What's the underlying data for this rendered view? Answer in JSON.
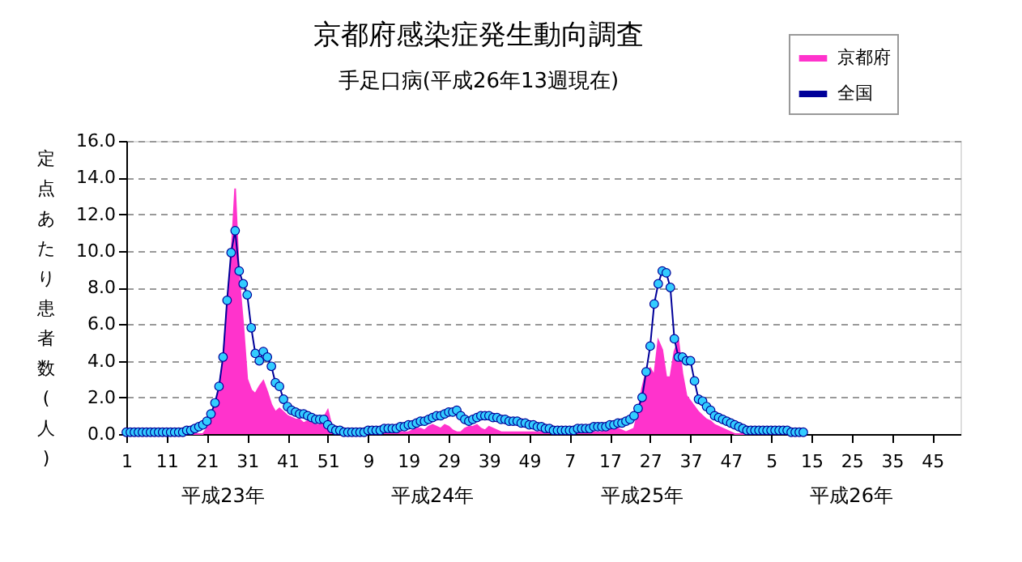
{
  "chart_data": {
    "type": "line",
    "title": "京都府感染症発生動向調査",
    "subtitle": "手足口病(平成26年13週現在)",
    "ylabel": "定点あたり患者数(人)",
    "categories": [
      "1",
      null,
      null,
      null,
      null,
      null,
      null,
      null,
      null,
      null,
      "11",
      null,
      null,
      null,
      null,
      null,
      null,
      null,
      null,
      null,
      "21",
      null,
      null,
      null,
      null,
      null,
      null,
      null,
      null,
      null,
      "31",
      null,
      null,
      null,
      null,
      null,
      null,
      null,
      null,
      null,
      "41",
      null,
      null,
      null,
      null,
      null,
      null,
      null,
      null,
      null,
      "51",
      null,
      null,
      null,
      null,
      null,
      null,
      null,
      null,
      null,
      "9",
      null,
      null,
      null,
      null,
      null,
      null,
      null,
      null,
      null,
      "19",
      null,
      null,
      null,
      null,
      null,
      null,
      null,
      null,
      null,
      "29",
      null,
      null,
      null,
      null,
      null,
      null,
      null,
      null,
      null,
      "39",
      null,
      null,
      null,
      null,
      null,
      null,
      null,
      null,
      null,
      "49",
      null,
      null,
      null,
      null,
      null,
      null,
      null,
      null,
      null,
      "7",
      null,
      null,
      null,
      null,
      null,
      null,
      null,
      null,
      null,
      "17",
      null,
      null,
      null,
      null,
      null,
      null,
      null,
      null,
      null,
      "27",
      null,
      null,
      null,
      null,
      null,
      null,
      null,
      null,
      null,
      "37",
      null,
      null,
      null,
      null,
      null,
      null,
      null,
      null,
      null,
      "47",
      null,
      null,
      null,
      null,
      null,
      null,
      null,
      null,
      null,
      "5",
      null,
      null,
      null,
      null,
      null,
      null,
      null,
      null,
      null,
      "15",
      null,
      null,
      null,
      null,
      null,
      null,
      null,
      null,
      null,
      "25",
      null,
      null,
      null,
      null,
      null,
      null,
      null,
      null,
      null,
      "35",
      null,
      null,
      null,
      null,
      null,
      null,
      null,
      null,
      null,
      "45",
      null,
      null,
      null,
      null,
      null,
      null,
      null
    ],
    "series": [
      {
        "name": "京都府",
        "type": "area",
        "color": "#ff33cc",
        "values": [
          0.0,
          0.0,
          0.0,
          0.0,
          0.0,
          0.0,
          0.0,
          0.0,
          0.0,
          0.0,
          0.0,
          0.0,
          0.0,
          0.0,
          0.0,
          0.0,
          0.0,
          0.0,
          0.0,
          0.0,
          0.3,
          0.8,
          1.5,
          2.5,
          4.0,
          7.0,
          9.5,
          13.4,
          8.5,
          6.0,
          3.0,
          2.4,
          2.2,
          2.6,
          2.9,
          2.3,
          1.6,
          1.2,
          1.4,
          1.2,
          1.0,
          0.9,
          0.8,
          0.8,
          0.6,
          0.7,
          0.6,
          0.5,
          0.5,
          0.9,
          1.3,
          0.4,
          0.1,
          0.1,
          0.1,
          0.1,
          0.1,
          0.1,
          0.1,
          0.1,
          0.1,
          0.1,
          0.1,
          0.1,
          0.1,
          0.1,
          0.1,
          0.1,
          0.1,
          0.1,
          0.1,
          0.2,
          0.3,
          0.3,
          0.2,
          0.4,
          0.5,
          0.4,
          0.3,
          0.5,
          0.4,
          0.2,
          0.1,
          0.1,
          0.3,
          0.4,
          0.4,
          0.5,
          0.3,
          0.2,
          0.4,
          0.3,
          0.2,
          0.1,
          0.1,
          0.1,
          0.1,
          0.1,
          0.1,
          0.1,
          0.1,
          0.1,
          0.1,
          0.1,
          0.1,
          0.1,
          0.1,
          0.1,
          0.1,
          0.1,
          0.1,
          0.1,
          0.1,
          0.1,
          0.1,
          0.1,
          0.1,
          0.1,
          0.1,
          0.2,
          0.3,
          0.4,
          0.3,
          0.2,
          0.1,
          0.2,
          0.3,
          1.2,
          2.5,
          3.4,
          3.6,
          3.2,
          5.1,
          4.6,
          3.1,
          3.1,
          4.5,
          5.1,
          3.3,
          2.1,
          1.8,
          1.5,
          1.2,
          1.0,
          0.8,
          0.7,
          0.5,
          0.4,
          0.3,
          0.2,
          0.1,
          0.0,
          0.0,
          0.0,
          0.0,
          0.0,
          0.0,
          0.0,
          0.0,
          0.0,
          0.0,
          0.0,
          0.0,
          0.0,
          0.0,
          0.0,
          0.0,
          0.0,
          0.0,
          null,
          null,
          null,
          null,
          null,
          null,
          null,
          null,
          null,
          null,
          null,
          null,
          null,
          null,
          null,
          null,
          null,
          null,
          null,
          null,
          null,
          null,
          null,
          null,
          null,
          null,
          null,
          null,
          null,
          null,
          null,
          null,
          null,
          null,
          null,
          null,
          null,
          null,
          null
        ]
      },
      {
        "name": "全国",
        "color": "#000099",
        "marker": "circle",
        "values": [
          0.1,
          0.1,
          0.1,
          0.1,
          0.1,
          0.1,
          0.1,
          0.1,
          0.1,
          0.1,
          0.1,
          0.1,
          0.1,
          0.1,
          0.1,
          0.2,
          0.2,
          0.3,
          0.4,
          0.5,
          0.7,
          1.1,
          1.7,
          2.6,
          4.2,
          7.3,
          9.9,
          11.1,
          8.9,
          8.2,
          7.6,
          5.8,
          4.4,
          4.0,
          4.5,
          4.2,
          3.7,
          2.8,
          2.6,
          1.9,
          1.5,
          1.3,
          1.2,
          1.1,
          1.1,
          1.0,
          0.9,
          0.8,
          0.8,
          0.8,
          0.5,
          0.3,
          0.2,
          0.2,
          0.1,
          0.1,
          0.1,
          0.1,
          0.1,
          0.1,
          0.2,
          0.2,
          0.2,
          0.2,
          0.3,
          0.3,
          0.3,
          0.3,
          0.4,
          0.4,
          0.5,
          0.5,
          0.6,
          0.7,
          0.7,
          0.8,
          0.9,
          1.0,
          1.0,
          1.1,
          1.2,
          1.2,
          1.3,
          1.0,
          0.8,
          0.7,
          0.8,
          0.9,
          1.0,
          1.0,
          1.0,
          0.9,
          0.9,
          0.8,
          0.8,
          0.7,
          0.7,
          0.7,
          0.6,
          0.6,
          0.5,
          0.5,
          0.4,
          0.4,
          0.3,
          0.3,
          0.2,
          0.2,
          0.2,
          0.2,
          0.2,
          0.2,
          0.3,
          0.3,
          0.3,
          0.3,
          0.4,
          0.4,
          0.4,
          0.4,
          0.5,
          0.5,
          0.6,
          0.6,
          0.7,
          0.8,
          1.0,
          1.4,
          2.0,
          3.4,
          4.8,
          7.1,
          8.2,
          8.9,
          8.8,
          8.0,
          5.2,
          4.2,
          4.2,
          4.0,
          4.0,
          2.9,
          1.9,
          1.8,
          1.5,
          1.3,
          1.0,
          0.9,
          0.8,
          0.7,
          0.6,
          0.5,
          0.4,
          0.3,
          0.2,
          0.2,
          0.2,
          0.2,
          0.2,
          0.2,
          0.2,
          0.2,
          0.2,
          0.2,
          0.2,
          0.1,
          0.1,
          0.1,
          0.1,
          null,
          null,
          null,
          null,
          null,
          null,
          null,
          null,
          null,
          null,
          null,
          null,
          null,
          null,
          null,
          null,
          null,
          null,
          null,
          null,
          null,
          null,
          null,
          null,
          null,
          null,
          null,
          null,
          null,
          null,
          null,
          null,
          null,
          null,
          null,
          null,
          null,
          null,
          null
        ]
      }
    ],
    "ylim": [
      0,
      16
    ],
    "yticks": [
      {
        "value": 0,
        "label": "0.0"
      },
      {
        "value": 2,
        "label": "2.0"
      },
      {
        "value": 4,
        "label": "4.0"
      },
      {
        "value": 6,
        "label": "6.0"
      },
      {
        "value": 8,
        "label": "8.0"
      },
      {
        "value": 10,
        "label": "10.0"
      },
      {
        "value": 12,
        "label": "12.0"
      },
      {
        "value": 14,
        "label": "14.0"
      },
      {
        "value": 16,
        "label": "16.0"
      }
    ],
    "grid": "y",
    "legend": "top right",
    "annotations": [
      "平成23年",
      "平成24年",
      "平成25年",
      "平成26年"
    ]
  }
}
